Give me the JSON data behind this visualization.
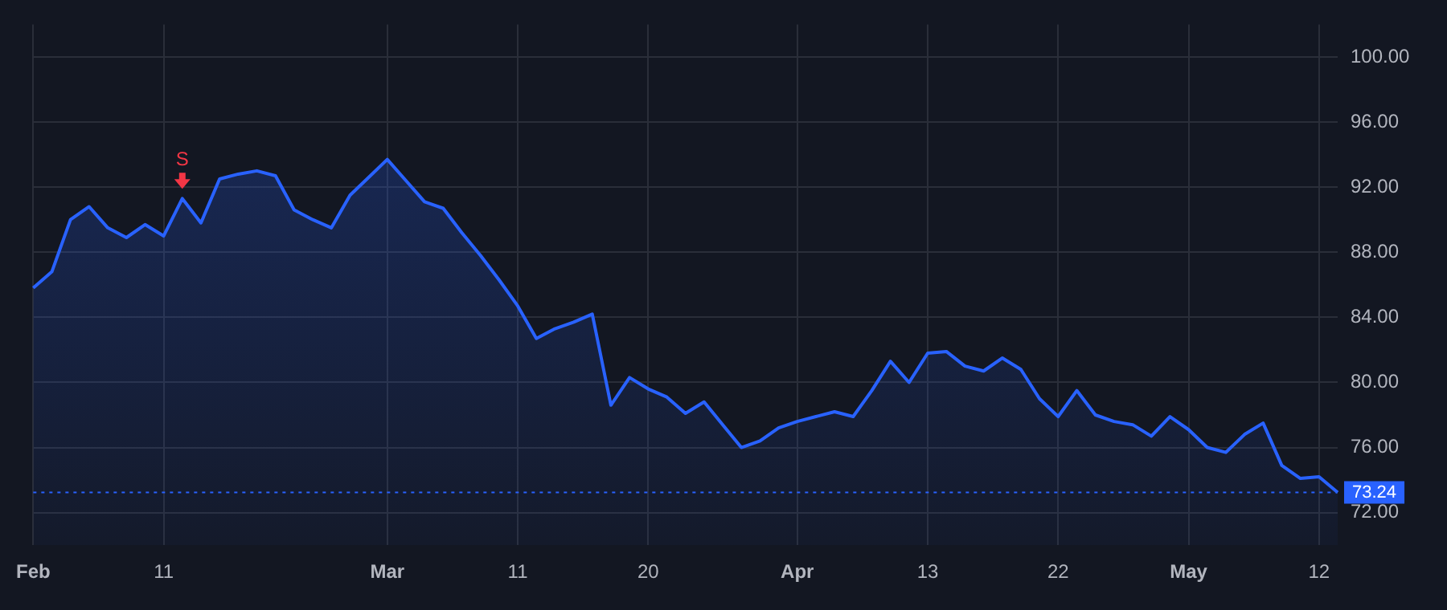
{
  "chart_data": {
    "type": "area",
    "categories": [
      "Feb",
      null,
      null,
      null,
      null,
      null,
      null,
      "11",
      null,
      null,
      null,
      null,
      null,
      null,
      null,
      null,
      null,
      null,
      null,
      "Mar",
      null,
      null,
      null,
      null,
      null,
      null,
      "11",
      null,
      null,
      null,
      null,
      null,
      null,
      "20",
      null,
      null,
      null,
      null,
      null,
      null,
      null,
      "Apr",
      null,
      null,
      null,
      null,
      null,
      null,
      "13",
      null,
      null,
      null,
      null,
      null,
      null,
      "22",
      null,
      null,
      null,
      null,
      null,
      null,
      "May",
      null,
      null,
      null,
      null,
      null,
      null,
      "12",
      null
    ],
    "series": [
      {
        "color": "#2962ff",
        "values": [
          85.8,
          86.8,
          90.0,
          90.8,
          89.5,
          88.9,
          89.7,
          89.0,
          91.3,
          89.8,
          92.5,
          92.8,
          93.0,
          92.7,
          90.6,
          90.0,
          89.5,
          91.5,
          92.6,
          93.7,
          92.4,
          91.1,
          90.7,
          89.2,
          87.8,
          86.3,
          84.7,
          82.7,
          83.3,
          83.7,
          84.2,
          78.6,
          80.3,
          79.6,
          79.1,
          78.1,
          78.8,
          77.4,
          76.0,
          76.4,
          77.2,
          77.6,
          77.9,
          78.2,
          77.9,
          79.5,
          81.3,
          80.0,
          81.8,
          81.9,
          81.0,
          80.7,
          81.5,
          80.8,
          79.0,
          77.9,
          79.5,
          78.0,
          77.6,
          77.4,
          76.7,
          77.9,
          77.1,
          76.0,
          75.7,
          76.8,
          77.5,
          74.9,
          74.1,
          74.2,
          73.24
        ]
      }
    ],
    "ylim": [
      70,
      102
    ],
    "yticks": [
      {
        "value": 72,
        "label": "72.00"
      },
      {
        "value": 76,
        "label": "76.00"
      },
      {
        "value": 80,
        "label": "80.00"
      },
      {
        "value": 84,
        "label": "84.00"
      },
      {
        "value": 88,
        "label": "88.00"
      },
      {
        "value": 92,
        "label": "92.00"
      },
      {
        "value": 96,
        "label": "96.00"
      },
      {
        "value": 100,
        "label": "100.00"
      }
    ],
    "grid": true,
    "legend": false,
    "ref_lines": [
      {
        "axis": "y",
        "value": 73.24,
        "label": "73.24",
        "color": "#2962ff",
        "line_style": "dotted"
      }
    ],
    "annotations": [
      {
        "text": "S",
        "y": 91.3
      }
    ]
  }
}
